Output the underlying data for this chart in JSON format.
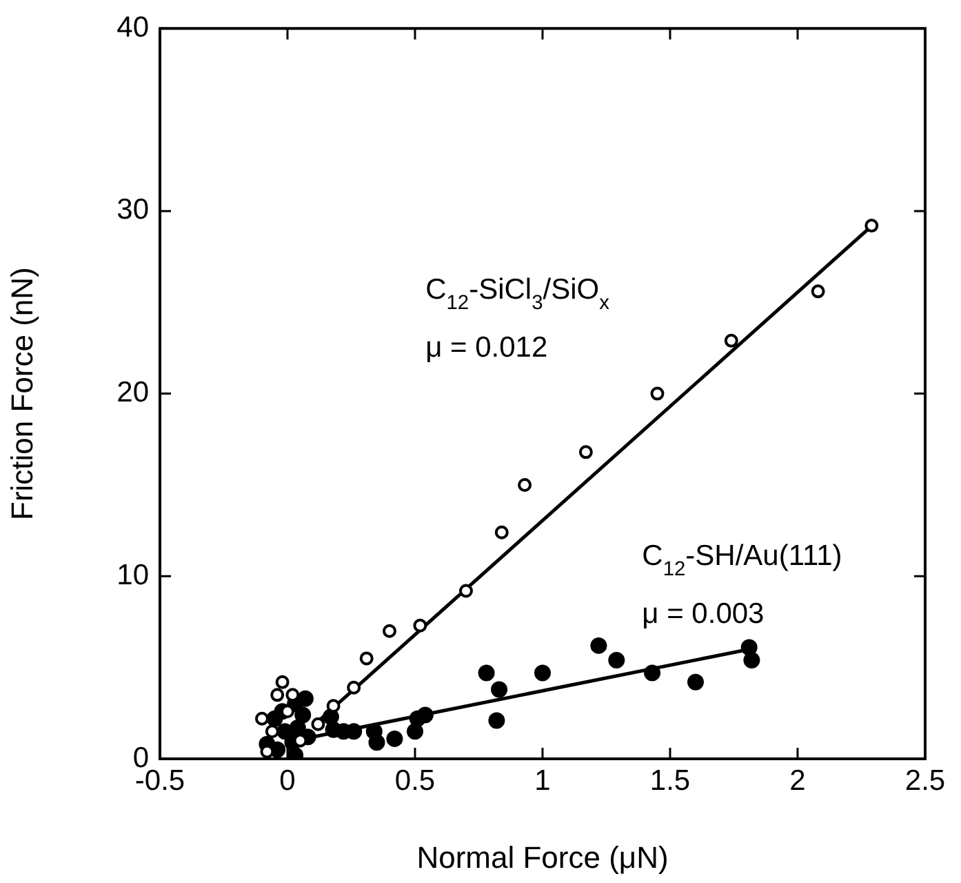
{
  "chart_data": {
    "type": "scatter",
    "xlabel": "Normal Force (μN)",
    "ylabel": "Friction Force (nN)",
    "xlim": [
      -0.5,
      2.5
    ],
    "xticks": [
      -0.5,
      0,
      0.5,
      1,
      1.5,
      2,
      2.5
    ],
    "ylim": [
      0,
      40
    ],
    "yticks": [
      0,
      10,
      20,
      30,
      40
    ],
    "grid": false,
    "legend": false,
    "annotations": [
      "C$_{12}$-SiCl$_{3}$/SiO$_{x}$",
      "μ = 0.012",
      "C$_{12}$-SH/Au(111)",
      "μ = 0.003"
    ],
    "series": [
      {
        "marker": "circle",
        "color": "#000000",
        "x": [
          2.29,
          2.08,
          1.74,
          1.45,
          1.17,
          0.93,
          0.84,
          0.7,
          0.52,
          0.4,
          0.31,
          0.26,
          0.18,
          0.12,
          -0.02,
          -0.04,
          0.02,
          -0.1,
          -0.08,
          -0.06,
          0.0,
          0.05
        ],
        "values": [
          29.2,
          25.6,
          22.9,
          20.0,
          16.8,
          15.0,
          12.4,
          9.2,
          7.3,
          7.0,
          5.5,
          3.9,
          2.9,
          1.9,
          4.2,
          3.5,
          3.5,
          2.2,
          0.4,
          1.5,
          2.6,
          1.0
        ]
      },
      {
        "marker": "circle",
        "color": "#000000",
        "x": [
          1.81,
          1.82,
          1.6,
          1.43,
          1.29,
          1.22,
          1.0,
          0.83,
          0.82,
          0.78,
          0.54,
          0.51,
          0.5,
          0.42,
          0.35,
          0.34,
          0.26,
          0.22,
          0.18,
          0.17,
          0.07,
          0.03,
          -0.01,
          -0.05,
          -0.08,
          0.02,
          0.04,
          0.06,
          -0.04,
          0.08,
          0.03,
          -0.02
        ],
        "values": [
          6.1,
          5.4,
          4.2,
          4.7,
          5.4,
          6.2,
          4.7,
          3.8,
          2.1,
          4.7,
          2.4,
          2.2,
          1.5,
          1.1,
          0.9,
          1.5,
          1.5,
          1.5,
          1.6,
          2.3,
          3.3,
          3.0,
          1.5,
          2.2,
          0.8,
          0.9,
          1.7,
          2.4,
          0.5,
          1.2,
          0.2,
          2.6
        ]
      },
      {
        "type": "line",
        "color": "#000000",
        "x": [
          0.1,
          2.3
        ],
        "values": [
          1.8,
          29.3
        ]
      },
      {
        "type": "line",
        "color": "#000000",
        "x": [
          0.1,
          1.81
        ],
        "values": [
          1.2,
          6.0
        ]
      }
    ]
  }
}
